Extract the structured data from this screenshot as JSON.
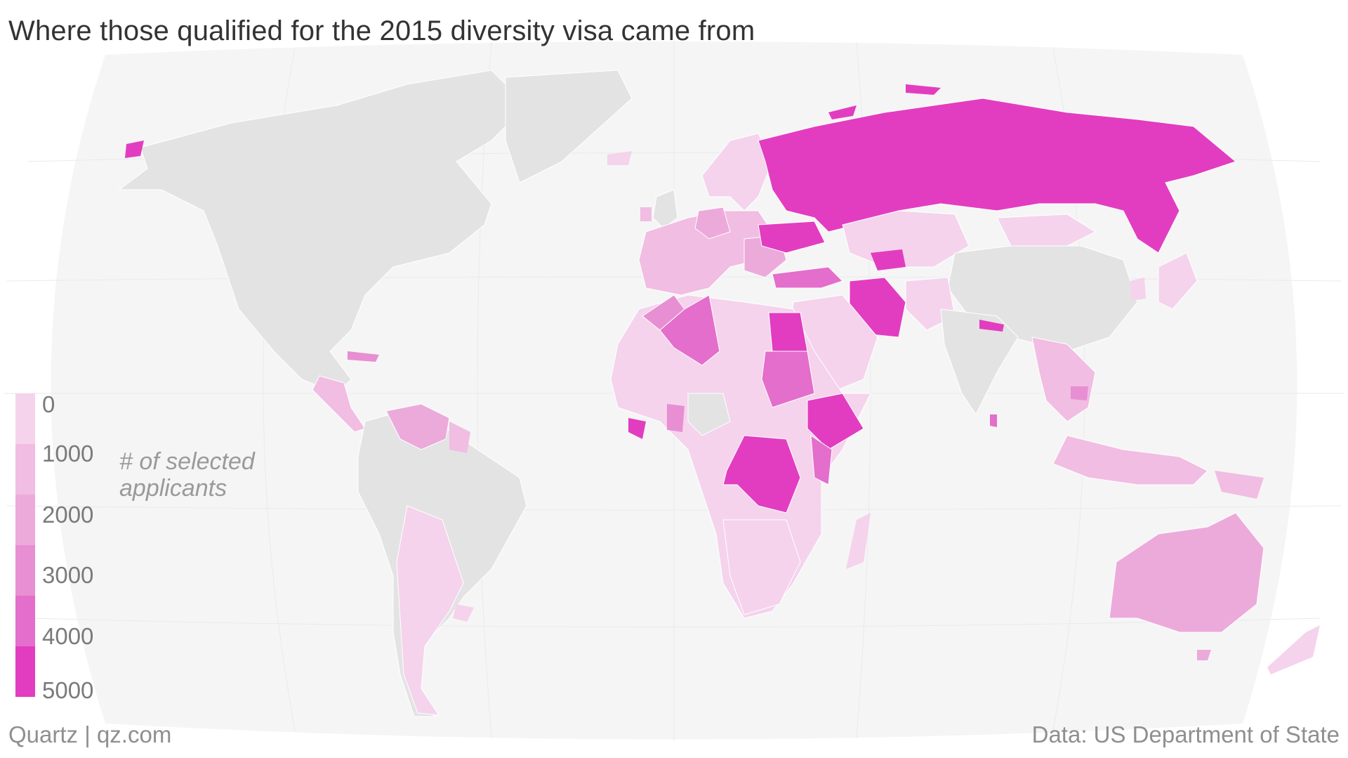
{
  "title": "Where those qualified for the 2015 diversity visa came from",
  "legend": {
    "title": "# of selected applicants",
    "ticks": [
      "0",
      "1000",
      "2000",
      "3000",
      "4000",
      "5000"
    ],
    "colors": [
      "#f5d3ec",
      "#f1bde2",
      "#ecaadb",
      "#e78fd2",
      "#e46ecb",
      "#e23dc0"
    ]
  },
  "colors": {
    "no_data": "#e3e3e3",
    "ocean": "#f5f5f5",
    "graticule": "#eaeaea",
    "border": "#ffffff"
  },
  "footer": {
    "source_left": "Quartz | qz.com",
    "source_right": "Data: US Department of State"
  }
}
